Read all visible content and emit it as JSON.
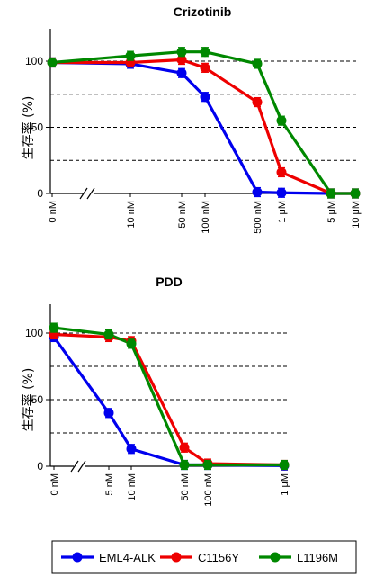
{
  "chart_data": [
    {
      "type": "line",
      "title": "Crizotinib",
      "ylabel": "生存率 (%)",
      "ylim": [
        0,
        120
      ],
      "yticks": [
        0,
        50,
        100
      ],
      "gridlines": [
        25,
        50,
        75,
        100
      ],
      "grid": "horizontal dashed",
      "categories": [
        "0 nM",
        "10 nM",
        "50 nM",
        "100 nM",
        "500 nM",
        "1 μM",
        "5 μM",
        "10 μM"
      ],
      "axis_break": "between 0 nM and 10 nM",
      "series": [
        {
          "name": "EML4-ALK",
          "color": "#0000ee",
          "values": [
            99,
            98,
            91,
            73,
            1,
            0.5,
            0,
            0
          ]
        },
        {
          "name": "C1156Y",
          "color": "#ee0000",
          "values": [
            99,
            99,
            101,
            95,
            69,
            16,
            0,
            0
          ]
        },
        {
          "name": "L1196M",
          "color": "#008800",
          "values": [
            99,
            104,
            107,
            107,
            98,
            55,
            0,
            0
          ]
        }
      ]
    },
    {
      "type": "line",
      "title": "PDD",
      "ylabel": "生存率 (%)",
      "ylim": [
        0,
        120
      ],
      "yticks": [
        0,
        50,
        100
      ],
      "gridlines": [
        25,
        50,
        75,
        100
      ],
      "grid": "horizontal dashed",
      "categories": [
        "0 nM",
        "5 nM",
        "10 nM",
        "50 nM",
        "100 nM",
        "1 μM"
      ],
      "axis_break": "between 0 nM and 5 nM",
      "series": [
        {
          "name": "EML4-ALK",
          "color": "#0000ee",
          "values": [
            97,
            40,
            13,
            1,
            1,
            0.5
          ]
        },
        {
          "name": "C1156Y",
          "color": "#ee0000",
          "values": [
            99,
            97,
            94,
            14,
            2,
            1
          ]
        },
        {
          "name": "L1196M",
          "color": "#008800",
          "values": [
            104,
            99,
            92,
            1,
            1,
            1
          ]
        }
      ]
    }
  ],
  "legend": {
    "placement": "bottom",
    "entries": [
      {
        "label": "EML4-ALK",
        "color": "#0000ee"
      },
      {
        "label": "C1156Y",
        "color": "#ee0000"
      },
      {
        "label": "L1196M",
        "color": "#008800"
      }
    ]
  }
}
